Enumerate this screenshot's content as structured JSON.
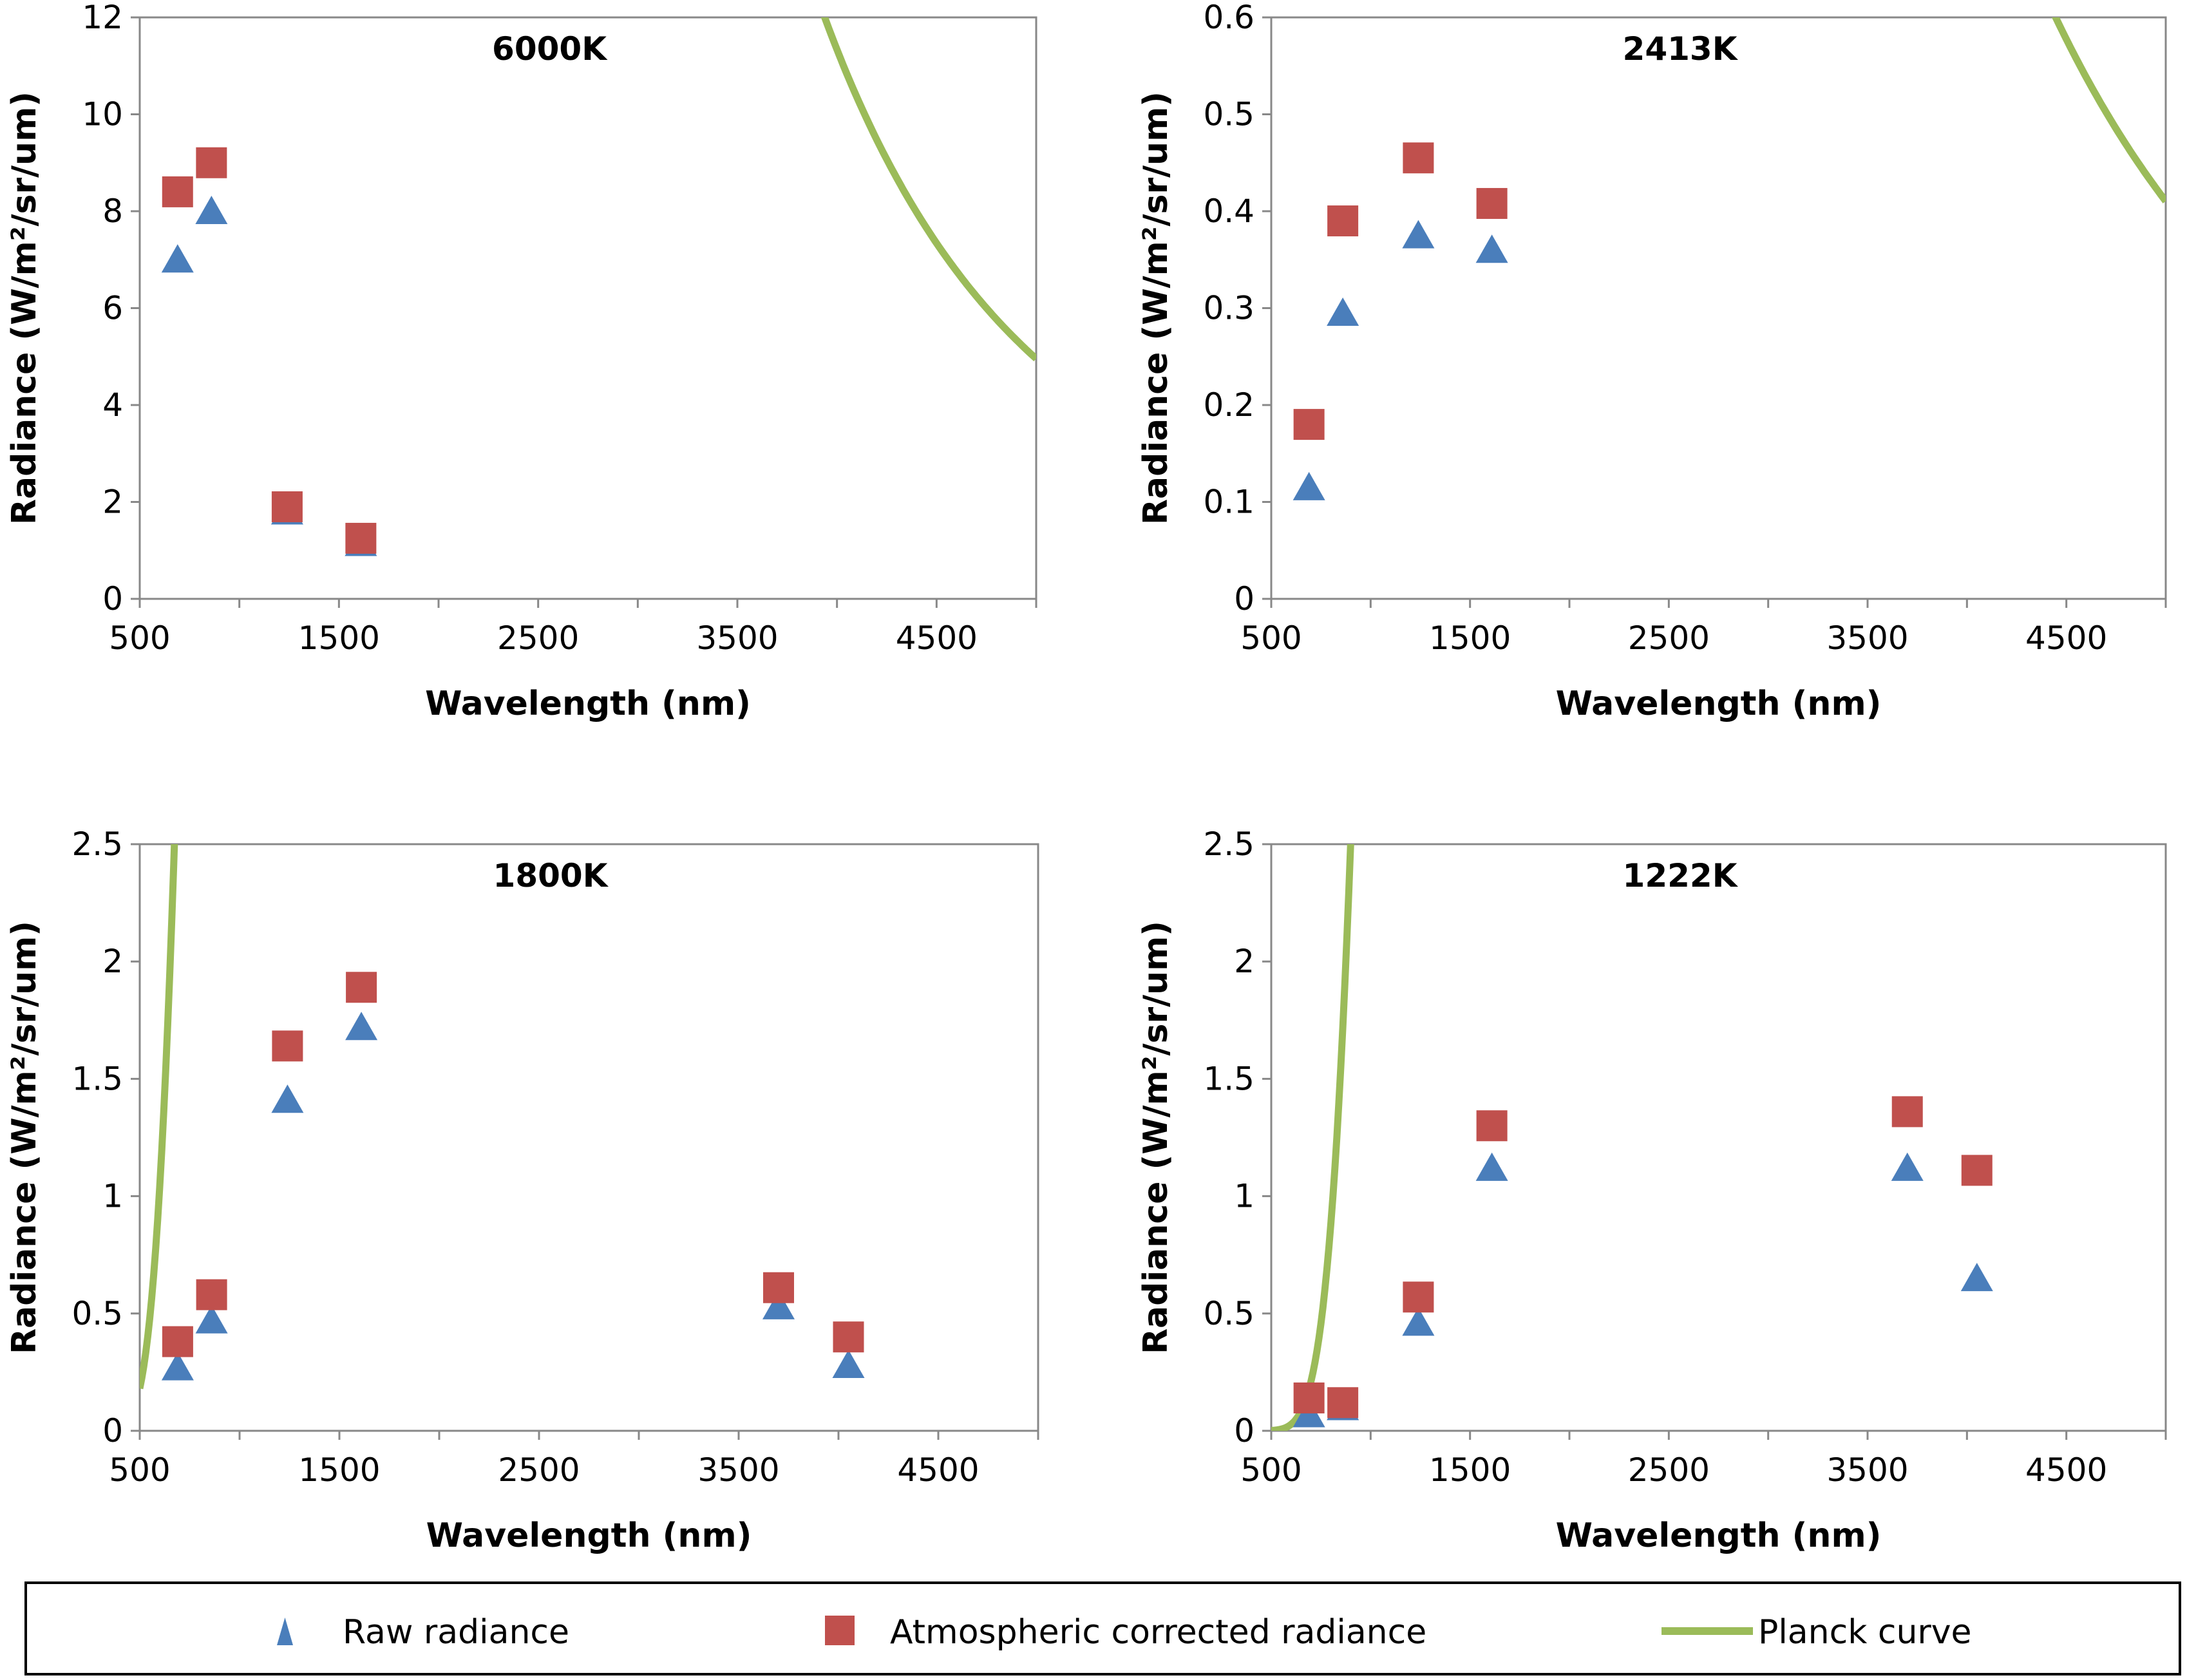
{
  "chart_data": [
    {
      "type": "scatter",
      "title": "6000K",
      "xlabel": "Wavelength (nm)",
      "ylabel": "Radiance (W/m²/sr/um)",
      "xlim": [
        500,
        5000
      ],
      "ylim": [
        0,
        12
      ],
      "xticks": [
        "500",
        "1500",
        "2500",
        "3500",
        "4500"
      ],
      "yticks": [
        "0",
        "2",
        "4",
        "6",
        "8",
        "10",
        "12"
      ],
      "series": [
        {
          "name": "Raw radiance",
          "x": [
            690,
            860,
            1240,
            1610
          ],
          "y": [
            7.0,
            8.0,
            1.8,
            1.15
          ]
        },
        {
          "name": "Atmospheric corrected radiance",
          "x": [
            690,
            860,
            1240,
            1610
          ],
          "y": [
            8.4,
            9.0,
            1.9,
            1.25
          ]
        },
        {
          "name": "Planck curve",
          "temperature_K": 6000,
          "scale": 8e-05
        }
      ]
    },
    {
      "type": "scatter",
      "title": "2413K",
      "xlabel": "Wavelength (nm)",
      "ylabel": "Radiance (W/m²/sr/um)",
      "xlim": [
        500,
        5000
      ],
      "ylim": [
        0,
        0.6
      ],
      "xticks": [
        "500",
        "1500",
        "2500",
        "3500",
        "4500"
      ],
      "yticks": [
        "0",
        "0.1",
        "0.2",
        "0.3",
        "0.4",
        "0.5",
        "0.6"
      ],
      "series": [
        {
          "name": "Raw radiance",
          "x": [
            690,
            860,
            1240,
            1610
          ],
          "y": [
            0.115,
            0.295,
            0.375,
            0.36
          ]
        },
        {
          "name": "Atmospheric corrected radiance",
          "x": [
            690,
            860,
            1240,
            1610
          ],
          "y": [
            0.18,
            0.39,
            0.455,
            0.408
          ]
        },
        {
          "name": "Planck curve",
          "temperature_K": 2413,
          "scale": 2.47e-05
        }
      ]
    },
    {
      "type": "scatter",
      "title": "1800K",
      "xlabel": "Wavelength (nm)",
      "ylabel": "Radiance (W/m²/sr/um)",
      "xlim": [
        500,
        5000
      ],
      "ylim": [
        0,
        2.5
      ],
      "xticks": [
        "500",
        "1500",
        "2500",
        "3500",
        "4500"
      ],
      "yticks": [
        "0",
        "0.5",
        "1",
        "1.5",
        "2",
        "2.5"
      ],
      "series": [
        {
          "name": "Raw radiance",
          "x": [
            690,
            860,
            1240,
            1610,
            3700,
            4050
          ],
          "y": [
            0.27,
            0.47,
            1.41,
            1.72,
            0.53,
            0.28
          ]
        },
        {
          "name": "Atmospheric corrected radiance",
          "x": [
            690,
            860,
            1240,
            1610,
            3700,
            4050
          ],
          "y": [
            0.38,
            0.58,
            1.64,
            1.89,
            0.61,
            0.4
          ]
        },
        {
          "name": "Planck curve",
          "temperature_K": 1800,
          "scale": 0.000413
        }
      ]
    },
    {
      "type": "scatter",
      "title": "1222K",
      "xlabel": "Wavelength (nm)",
      "ylabel": "Radiance (W/m²/sr/um)",
      "xlim": [
        500,
        5000
      ],
      "ylim": [
        0,
        2.5
      ],
      "xticks": [
        "500",
        "1500",
        "2500",
        "3500",
        "4500"
      ],
      "yticks": [
        "0",
        "0.5",
        "1",
        "1.5",
        "2",
        "2.5"
      ],
      "series": [
        {
          "name": "Raw radiance",
          "x": [
            690,
            860,
            1240,
            1610,
            3700,
            4050
          ],
          "y": [
            0.07,
            0.1,
            0.46,
            1.12,
            1.12,
            0.65
          ]
        },
        {
          "name": "Atmospheric corrected radiance",
          "x": [
            690,
            860,
            1240,
            1610,
            3700,
            4050
          ],
          "y": [
            0.14,
            0.12,
            0.57,
            1.3,
            1.36,
            1.11
          ]
        },
        {
          "name": "Planck curve",
          "temperature_K": 1222,
          "scale": 0.00597
        }
      ]
    }
  ],
  "legend": {
    "position": "bottom",
    "items": [
      {
        "label": "Raw radiance",
        "marker": "triangle",
        "color": "#4a7ebb"
      },
      {
        "label": "Atmospheric corrected radiance",
        "marker": "square",
        "color": "#c0504d"
      },
      {
        "label": "Planck curve",
        "marker": "line",
        "color": "#9bbb59"
      }
    ]
  },
  "colors": {
    "raw": "#4a7ebb",
    "corrected": "#c0504d",
    "planck": "#9bbb59",
    "axis": "#888888"
  }
}
